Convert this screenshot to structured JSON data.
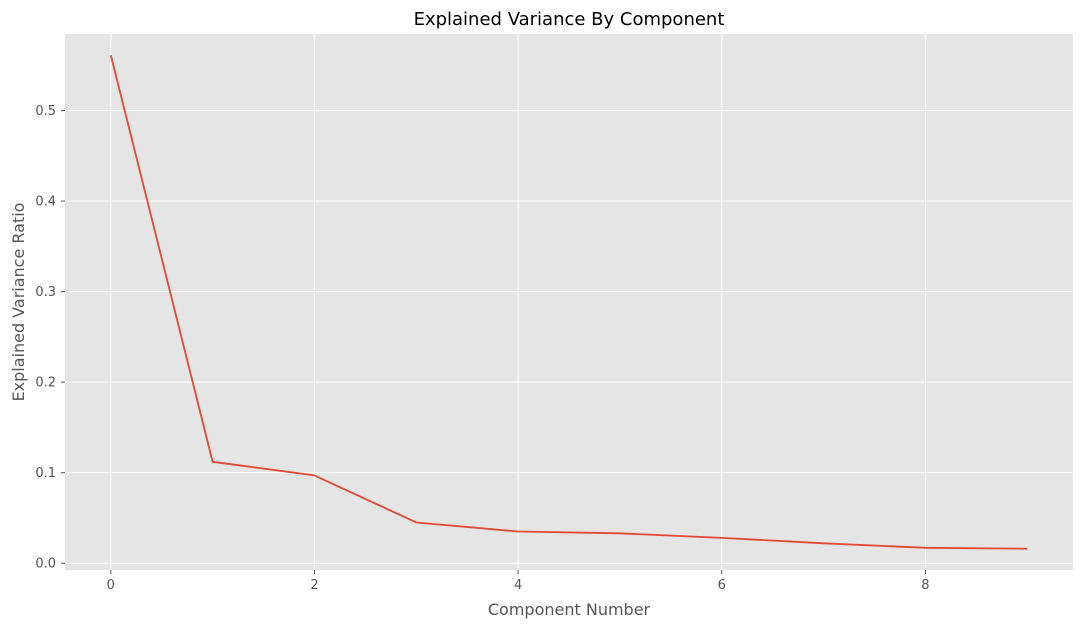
{
  "chart_data": {
    "type": "line",
    "title": "Explained Variance By Component",
    "xlabel": "Component Number",
    "ylabel": "Explained Variance Ratio",
    "x": [
      0,
      1,
      2,
      3,
      4,
      5,
      6,
      7,
      8,
      9
    ],
    "series": [
      {
        "values": [
          0.561,
          0.112,
          0.097,
          0.045,
          0.035,
          0.033,
          0.028,
          0.022,
          0.017,
          0.016
        ]
      }
    ],
    "xlim": [
      -0.45,
      9.45
    ],
    "ylim": [
      -0.0075,
      0.5845
    ],
    "xticks": [
      0,
      2,
      4,
      6,
      8
    ],
    "yticks": [
      0.0,
      0.1,
      0.2,
      0.3,
      0.4,
      0.5
    ],
    "xtick_labels": [
      "0",
      "2",
      "4",
      "6",
      "8"
    ],
    "ytick_labels": [
      "0.0",
      "0.1",
      "0.2",
      "0.3",
      "0.4",
      "0.5"
    ],
    "grid": true,
    "colors": {
      "background": "#E5E5E5",
      "grid": "#FFFFFF",
      "line": "#E24A33",
      "tick": "#555555"
    }
  }
}
